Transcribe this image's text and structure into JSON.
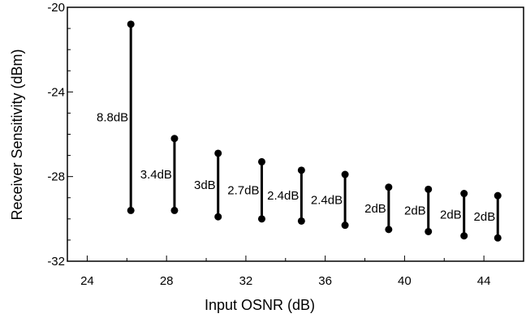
{
  "chart_data": {
    "type": "range",
    "title": "",
    "xlabel": "Input OSNR (dB)",
    "ylabel": "Receiver Sensitivity (dBm)",
    "xlim": [
      23,
      46
    ],
    "ylim": [
      -32,
      -20
    ],
    "x_ticks": [
      24,
      28,
      32,
      36,
      40,
      44
    ],
    "y_ticks": [
      -20,
      -24,
      -28,
      -32
    ],
    "grid": false,
    "series": [
      {
        "x": 26.2,
        "low": -29.6,
        "high": -20.8,
        "label": "8.8dB"
      },
      {
        "x": 28.4,
        "low": -29.6,
        "high": -26.2,
        "label": "3.4dB"
      },
      {
        "x": 30.6,
        "low": -29.9,
        "high": -26.9,
        "label": "3dB"
      },
      {
        "x": 32.8,
        "low": -30.0,
        "high": -27.3,
        "label": "2.7dB"
      },
      {
        "x": 34.8,
        "low": -30.1,
        "high": -27.7,
        "label": "2.4dB"
      },
      {
        "x": 37.0,
        "low": -30.3,
        "high": -27.9,
        "label": "2.4dB"
      },
      {
        "x": 39.2,
        "low": -30.5,
        "high": -28.5,
        "label": "2dB"
      },
      {
        "x": 41.2,
        "low": -30.6,
        "high": -28.6,
        "label": "2dB"
      },
      {
        "x": 43.0,
        "low": -30.8,
        "high": -28.8,
        "label": "2dB"
      },
      {
        "x": 44.7,
        "low": -30.9,
        "high": -28.9,
        "label": "2dB"
      }
    ]
  }
}
